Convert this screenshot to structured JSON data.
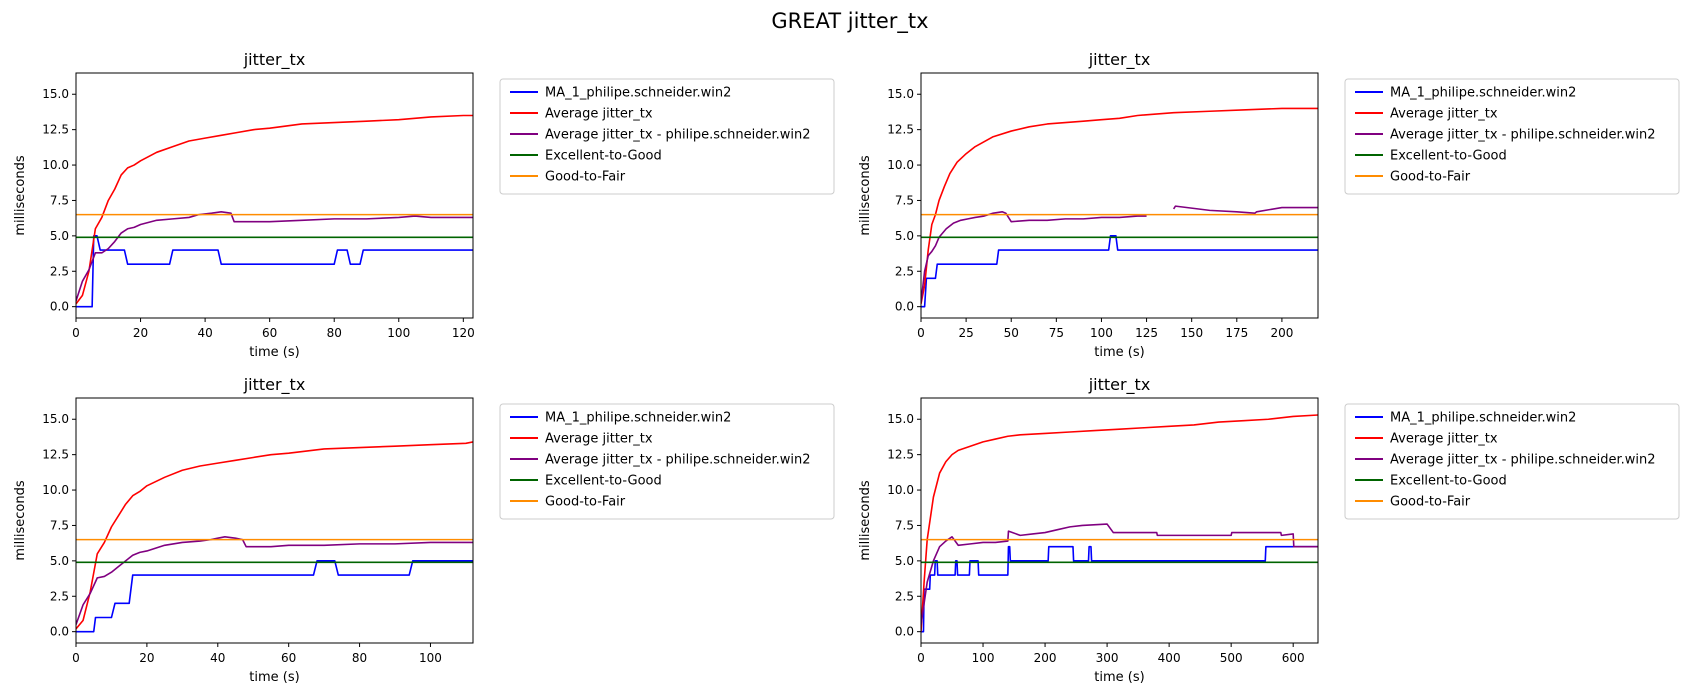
{
  "figure": {
    "title": "GREAT jitter_tx"
  },
  "chart_data": [
    {
      "type": "line",
      "title": "jitter_tx",
      "xlabel": "time (s)",
      "ylabel": "milliseconds",
      "xlim": [
        0,
        123
      ],
      "ylim": [
        -0.8,
        16.5
      ],
      "xticks": [
        0,
        20,
        40,
        60,
        80,
        100,
        120
      ],
      "yticks": [
        0.0,
        2.5,
        5.0,
        7.5,
        10.0,
        12.5,
        15.0
      ],
      "legend_location": "outside-right",
      "series": [
        {
          "name": "MA_1_philipe.schneider.win2",
          "color": "#0000ff",
          "step": true,
          "x": [
            0,
            5,
            5.5,
            6.5,
            7.5,
            15,
            16,
            29,
            30,
            44,
            45,
            80,
            81,
            84,
            85,
            88,
            89,
            123
          ],
          "y": [
            0,
            0,
            5,
            5,
            4,
            4,
            3,
            3,
            4,
            4,
            3,
            3,
            4,
            4,
            3,
            3,
            4,
            4
          ]
        },
        {
          "name": "Average jitter_tx",
          "color": "#ff0000",
          "x": [
            0,
            2,
            4,
            6,
            8,
            10,
            12,
            14,
            16,
            18,
            20,
            25,
            30,
            35,
            40,
            45,
            50,
            55,
            60,
            70,
            80,
            90,
            100,
            110,
            120,
            123
          ],
          "y": [
            0.2,
            0.8,
            2.5,
            5.5,
            6.3,
            7.5,
            8.3,
            9.3,
            9.8,
            10.0,
            10.3,
            10.9,
            11.3,
            11.7,
            11.9,
            12.1,
            12.3,
            12.5,
            12.6,
            12.9,
            13.0,
            13.1,
            13.2,
            13.4,
            13.5,
            13.5
          ]
        },
        {
          "name": "Average jitter_tx - philipe.schneider.win2",
          "color": "#800080",
          "x": [
            0,
            2,
            4,
            6,
            8,
            10,
            12,
            14,
            16,
            18,
            20,
            25,
            30,
            35,
            38,
            42,
            45,
            48,
            49,
            60,
            70,
            80,
            90,
            100,
            105,
            110,
            120,
            123
          ],
          "y": [
            0.4,
            1.8,
            2.6,
            3.8,
            3.8,
            4.1,
            4.6,
            5.2,
            5.5,
            5.6,
            5.8,
            6.1,
            6.2,
            6.3,
            6.5,
            6.6,
            6.7,
            6.6,
            6.0,
            6.0,
            6.1,
            6.2,
            6.2,
            6.3,
            6.4,
            6.3,
            6.3,
            6.3
          ]
        },
        {
          "name": "Excellent-to-Good",
          "color": "#006400",
          "x": [
            0,
            123
          ],
          "y": [
            4.9,
            4.9
          ]
        },
        {
          "name": "Good-to-Fair",
          "color": "#ff8c00",
          "x": [
            0,
            123
          ],
          "y": [
            6.5,
            6.5
          ]
        }
      ]
    },
    {
      "type": "line",
      "title": "jitter_tx",
      "xlabel": "time (s)",
      "ylabel": "milliseconds",
      "xlim": [
        0,
        220
      ],
      "ylim": [
        -0.8,
        16.5
      ],
      "xticks": [
        0,
        25,
        50,
        75,
        100,
        125,
        150,
        175,
        200
      ],
      "yticks": [
        0.0,
        2.5,
        5.0,
        7.5,
        10.0,
        12.5,
        15.0
      ],
      "legend_location": "outside-right",
      "series": [
        {
          "name": "MA_1_philipe.schneider.win2",
          "color": "#0000ff",
          "step": true,
          "x": [
            0,
            2,
            3,
            8,
            9,
            42,
            43,
            104,
            105,
            108,
            109,
            220
          ],
          "y": [
            0,
            0,
            2,
            2,
            3,
            3,
            4,
            4,
            5,
            5,
            4,
            4
          ]
        },
        {
          "name": "Average jitter_tx",
          "color": "#ff0000",
          "x": [
            0,
            2,
            4,
            6,
            8,
            10,
            13,
            16,
            20,
            25,
            30,
            40,
            50,
            60,
            70,
            80,
            90,
            100,
            110,
            120,
            140,
            160,
            180,
            200,
            220
          ],
          "y": [
            0.2,
            1.5,
            4.0,
            5.8,
            6.5,
            7.5,
            8.5,
            9.4,
            10.2,
            10.8,
            11.3,
            12.0,
            12.4,
            12.7,
            12.9,
            13.0,
            13.1,
            13.2,
            13.3,
            13.5,
            13.7,
            13.8,
            13.9,
            14.0,
            14.0
          ]
        },
        {
          "name": "Average jitter_tx - philipe.schneider.win2",
          "color": "#800080",
          "x": [
            0,
            2,
            4,
            6,
            8,
            10,
            14,
            18,
            22,
            26,
            30,
            35,
            40,
            45,
            47,
            50,
            60,
            70,
            80,
            90,
            100,
            110,
            120,
            125,
            126,
            140,
            141,
            160,
            175,
            185,
            186,
            200,
            220
          ],
          "y": [
            0.3,
            2.5,
            3.6,
            3.9,
            4.3,
            4.9,
            5.5,
            5.9,
            6.1,
            6.2,
            6.3,
            6.4,
            6.6,
            6.7,
            6.6,
            6.0,
            6.1,
            6.1,
            6.2,
            6.2,
            6.3,
            6.3,
            6.4,
            6.4,
            null,
            6.9,
            7.1,
            6.8,
            6.7,
            6.6,
            6.7,
            7.0,
            7.0
          ]
        },
        {
          "name": "Excellent-to-Good",
          "color": "#006400",
          "x": [
            0,
            220
          ],
          "y": [
            4.9,
            4.9
          ]
        },
        {
          "name": "Good-to-Fair",
          "color": "#ff8c00",
          "x": [
            0,
            220
          ],
          "y": [
            6.5,
            6.5
          ]
        }
      ]
    },
    {
      "type": "line",
      "title": "jitter_tx",
      "xlabel": "time (s)",
      "ylabel": "milliseconds",
      "xlim": [
        0,
        112
      ],
      "ylim": [
        -0.8,
        16.5
      ],
      "xticks": [
        0,
        20,
        40,
        60,
        80,
        100
      ],
      "yticks": [
        0.0,
        2.5,
        5.0,
        7.5,
        10.0,
        12.5,
        15.0
      ],
      "legend_location": "outside-right",
      "series": [
        {
          "name": "MA_1_philipe.schneider.win2",
          "color": "#0000ff",
          "step": true,
          "x": [
            0,
            5,
            5.5,
            10,
            11,
            15,
            16,
            67,
            68,
            73,
            74,
            94,
            95,
            112
          ],
          "y": [
            0,
            0,
            1,
            1,
            2,
            2,
            4,
            4,
            5,
            5,
            4,
            4,
            5,
            5
          ]
        },
        {
          "name": "Average jitter_tx",
          "color": "#ff0000",
          "x": [
            0,
            2,
            4,
            6,
            8,
            10,
            12,
            14,
            16,
            18,
            20,
            25,
            30,
            35,
            40,
            45,
            50,
            55,
            60,
            70,
            80,
            90,
            100,
            110,
            112
          ],
          "y": [
            0.2,
            0.8,
            2.8,
            5.5,
            6.3,
            7.4,
            8.2,
            9.0,
            9.6,
            9.9,
            10.3,
            10.9,
            11.4,
            11.7,
            11.9,
            12.1,
            12.3,
            12.5,
            12.6,
            12.9,
            13.0,
            13.1,
            13.2,
            13.3,
            13.4
          ]
        },
        {
          "name": "Average jitter_tx - philipe.schneider.win2",
          "color": "#800080",
          "x": [
            0,
            2,
            4,
            6,
            8,
            10,
            12,
            14,
            16,
            18,
            20,
            25,
            30,
            35,
            38,
            40,
            42,
            45,
            47,
            48,
            55,
            60,
            70,
            80,
            90,
            100,
            110,
            112
          ],
          "y": [
            0.5,
            1.9,
            2.7,
            3.8,
            3.9,
            4.2,
            4.6,
            5.0,
            5.4,
            5.6,
            5.7,
            6.1,
            6.3,
            6.4,
            6.5,
            6.6,
            6.7,
            6.6,
            6.5,
            6.0,
            6.0,
            6.1,
            6.1,
            6.2,
            6.2,
            6.3,
            6.3,
            6.3
          ]
        },
        {
          "name": "Excellent-to-Good",
          "color": "#006400",
          "x": [
            0,
            112
          ],
          "y": [
            4.9,
            4.9
          ]
        },
        {
          "name": "Good-to-Fair",
          "color": "#ff8c00",
          "x": [
            0,
            112
          ],
          "y": [
            6.5,
            6.5
          ]
        }
      ]
    },
    {
      "type": "line",
      "title": "jitter_tx",
      "xlabel": "time (s)",
      "ylabel": "milliseconds",
      "xlim": [
        0,
        640
      ],
      "ylim": [
        -0.8,
        16.5
      ],
      "xticks": [
        0,
        100,
        200,
        300,
        400,
        500,
        600
      ],
      "yticks": [
        0.0,
        2.5,
        5.0,
        7.5,
        10.0,
        12.5,
        15.0
      ],
      "legend_location": "outside-right",
      "series": [
        {
          "name": "MA_1_philipe.schneider.win2",
          "color": "#0000ff",
          "step": true,
          "x": [
            0,
            4,
            5,
            14,
            15,
            22,
            23,
            26,
            27,
            55,
            56,
            58,
            59,
            78,
            79,
            92,
            93,
            140,
            141,
            143,
            144,
            205,
            206,
            245,
            246,
            270,
            271,
            274,
            275,
            555,
            556,
            640
          ],
          "y": [
            0,
            0,
            3,
            3,
            4,
            4,
            5,
            5,
            4,
            4,
            5,
            5,
            4,
            4,
            5,
            5,
            4,
            4,
            6,
            6,
            5,
            5,
            6,
            6,
            5,
            5,
            6,
            6,
            5,
            5,
            6,
            6
          ]
        },
        {
          "name": "Average jitter_tx",
          "color": "#ff0000",
          "x": [
            0,
            5,
            10,
            20,
            30,
            40,
            50,
            60,
            80,
            100,
            120,
            140,
            160,
            200,
            240,
            280,
            320,
            360,
            400,
            440,
            480,
            520,
            560,
            600,
            640
          ],
          "y": [
            0.0,
            3.5,
            6.5,
            9.5,
            11.2,
            12.0,
            12.5,
            12.8,
            13.1,
            13.4,
            13.6,
            13.8,
            13.9,
            14.0,
            14.1,
            14.2,
            14.3,
            14.4,
            14.5,
            14.6,
            14.8,
            14.9,
            15.0,
            15.2,
            15.3
          ]
        },
        {
          "name": "Average jitter_tx - philipe.schneider.win2",
          "color": "#800080",
          "x": [
            0,
            10,
            20,
            30,
            40,
            50,
            60,
            80,
            100,
            120,
            140,
            141,
            160,
            180,
            200,
            220,
            240,
            260,
            300,
            310,
            380,
            381,
            500,
            501,
            580,
            581,
            600,
            601,
            640
          ],
          "y": [
            0.5,
            3.5,
            5.0,
            6.0,
            6.4,
            6.7,
            6.1,
            6.2,
            6.3,
            6.3,
            6.4,
            7.1,
            6.8,
            6.9,
            7.0,
            7.2,
            7.4,
            7.5,
            7.6,
            7.0,
            7.0,
            6.8,
            6.8,
            7.0,
            7.0,
            6.8,
            6.9,
            6.0,
            6.0
          ]
        },
        {
          "name": "Excellent-to-Good",
          "color": "#006400",
          "x": [
            0,
            640
          ],
          "y": [
            4.9,
            4.9
          ]
        },
        {
          "name": "Good-to-Fair",
          "color": "#ff8c00",
          "x": [
            0,
            640
          ],
          "y": [
            6.5,
            6.5
          ]
        }
      ]
    }
  ]
}
